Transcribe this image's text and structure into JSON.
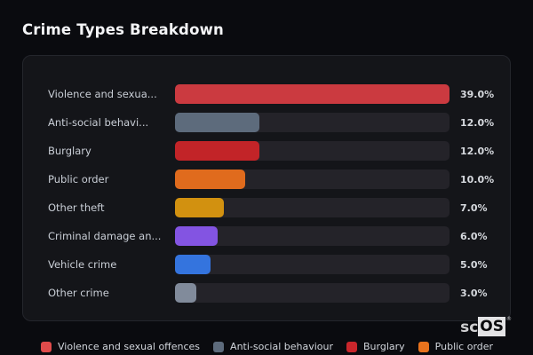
{
  "title": "Crime Types Breakdown",
  "chart_data": {
    "type": "bar",
    "orientation": "horizontal",
    "title": "Crime Types Breakdown",
    "categories": [
      "Violence and sexua...",
      "Anti-social behavi...",
      "Burglary",
      "Public order",
      "Other theft",
      "Criminal damage an...",
      "Vehicle crime",
      "Other crime"
    ],
    "values": [
      39.0,
      12.0,
      12.0,
      10.0,
      7.0,
      6.0,
      5.0,
      3.0
    ],
    "value_labels": [
      "39.0%",
      "12.0%",
      "12.0%",
      "10.0%",
      "7.0%",
      "6.0%",
      "5.0%",
      "3.0%"
    ],
    "bar_colors": [
      "#cb3a40",
      "#5d6b7c",
      "#c22428",
      "#e06b1d",
      "#d29110",
      "#8354e2",
      "#3474de",
      "#818b9b"
    ],
    "xlim": [
      0,
      39
    ],
    "grid": false,
    "legend_position": "bottom",
    "legend": [
      {
        "label": "Violence and sexual offences",
        "color": "#e04b4b"
      },
      {
        "label": "Anti-social behaviour",
        "color": "#5d6b7c"
      },
      {
        "label": "Burglary",
        "color": "#c9262b"
      },
      {
        "label": "Public order",
        "color": "#e8731d"
      }
    ]
  },
  "logo": {
    "prefix": "sc",
    "box_text": "OS",
    "registered_mark": "®"
  }
}
